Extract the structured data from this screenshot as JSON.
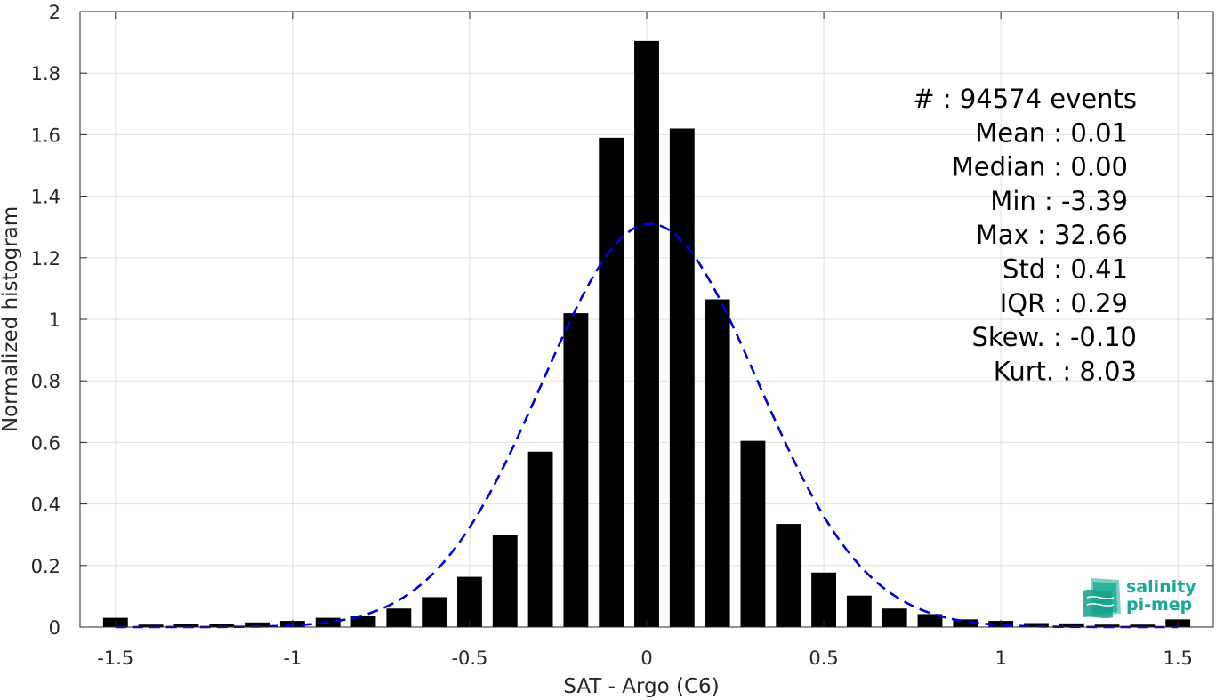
{
  "chart_data": {
    "type": "bar",
    "xlabel": "SAT - Argo (C6)",
    "ylabel": "Normalized histogram",
    "xlim": [
      -1.6,
      1.6
    ],
    "ylim": [
      0,
      2
    ],
    "grid": true,
    "x_ticks": [
      -1.5,
      -1,
      -0.5,
      0,
      0.5,
      1,
      1.5
    ],
    "x_tick_labels": [
      "-1.5",
      "-1",
      "-0.5",
      "0",
      "0.5",
      "1",
      "1.5"
    ],
    "y_ticks": [
      0,
      0.2,
      0.4,
      0.6,
      0.8,
      1,
      1.2,
      1.4,
      1.6,
      1.8,
      2
    ],
    "y_tick_labels": [
      "0",
      "0.2",
      "0.4",
      "0.6",
      "0.8",
      "1",
      "1.2",
      "1.4",
      "1.6",
      "1.8",
      "2"
    ],
    "bar_width": 0.07,
    "bars": {
      "x": [
        -1.5,
        -1.4,
        -1.3,
        -1.2,
        -1.1,
        -1.0,
        -0.9,
        -0.8,
        -0.7,
        -0.6,
        -0.5,
        -0.4,
        -0.3,
        -0.2,
        -0.1,
        0.0,
        0.1,
        0.2,
        0.3,
        0.4,
        0.5,
        0.6,
        0.7,
        0.8,
        0.9,
        1.0,
        1.1,
        1.2,
        1.3,
        1.4,
        1.5
      ],
      "values": [
        0.03,
        0.008,
        0.01,
        0.01,
        0.015,
        0.02,
        0.03,
        0.035,
        0.06,
        0.097,
        0.163,
        0.3,
        0.57,
        1.02,
        1.59,
        1.905,
        1.62,
        1.065,
        0.605,
        0.335,
        0.177,
        0.102,
        0.06,
        0.042,
        0.025,
        0.02,
        0.013,
        0.012,
        0.008,
        0.008,
        0.025
      ],
      "color": "#000000"
    },
    "gaussian_fit": {
      "mean": 0.01,
      "std": 0.305,
      "peak": 1.31,
      "color": "#0000dd",
      "style": "dashed"
    },
    "stats": [
      {
        "label": "#  :",
        "value": "94574 events"
      },
      {
        "label": "Mean :",
        "value": "0.01"
      },
      {
        "label": "Median :",
        "value": "0.00"
      },
      {
        "label": "Min :",
        "value": "-3.39"
      },
      {
        "label": "Max :",
        "value": "32.66"
      },
      {
        "label": "Std :",
        "value": "0.41"
      },
      {
        "label": "IQR :",
        "value": "0.29"
      },
      {
        "label": "Skew. :",
        "value": "-0.10"
      },
      {
        "label": "Kurt. :",
        "value": "8.03"
      }
    ]
  },
  "logo": {
    "line1": "salinity",
    "line2": "pi-mep",
    "color": "#1aa897"
  }
}
